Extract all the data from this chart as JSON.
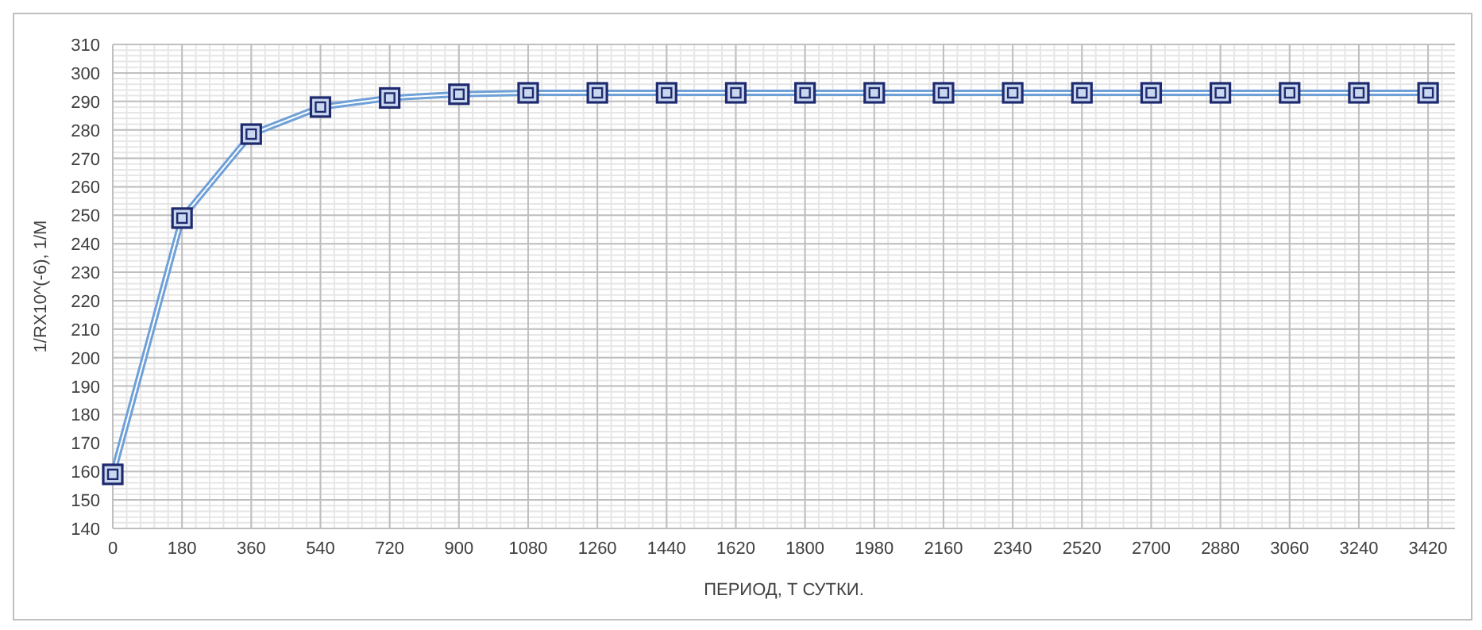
{
  "chart_data": {
    "type": "line",
    "xlabel": "ПЕРИОД, Т СУТКИ.",
    "ylabel": "1/RX10^(-6), 1/M",
    "x": [
      0,
      180,
      360,
      540,
      720,
      900,
      1080,
      1260,
      1440,
      1620,
      1800,
      1980,
      2160,
      2340,
      2520,
      2700,
      2880,
      3060,
      3240,
      3420
    ],
    "series": [
      {
        "color": "#6fa0d8",
        "values": [
          159,
          249,
          278.5,
          288,
          291.2,
          292.5,
          293,
          293,
          293,
          293,
          293,
          293,
          293,
          293,
          293,
          293,
          293,
          293,
          293,
          293
        ]
      }
    ],
    "xlim": [
      0,
      3490
    ],
    "xticks": [
      0,
      180,
      360,
      540,
      720,
      900,
      1080,
      1260,
      1440,
      1620,
      1800,
      1980,
      2160,
      2340,
      2520,
      2700,
      2880,
      3060,
      3240,
      3420
    ],
    "ylim": [
      140,
      310
    ],
    "yticks": [
      140,
      150,
      160,
      170,
      180,
      190,
      200,
      210,
      220,
      230,
      240,
      250,
      260,
      270,
      280,
      290,
      300,
      310
    ],
    "grid": true,
    "marker": "square",
    "line_style": "solid"
  }
}
